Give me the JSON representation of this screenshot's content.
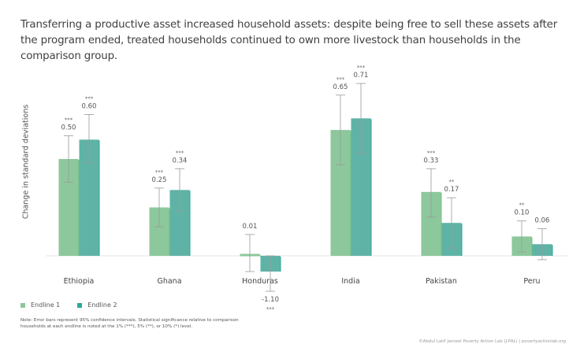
{
  "title": "Transferring a productive asset increased household assets: despite being free to sell these assets after the program ended, treated households continued to own more livestock than households in the comparison group.",
  "chart_data": {
    "type": "bar",
    "title": "Transferring a productive asset increased household assets: despite being free to sell these assets after the program ended, treated households continued to own more livestock than households in the comparison group.",
    "xlabel": "",
    "ylabel": "Change in standard deviations",
    "categories": [
      "Ethiopia",
      "Ghana",
      "Honduras",
      "India",
      "Pakistan",
      "Peru"
    ],
    "series": [
      {
        "name": "Endline 1",
        "color": "#8dc89c",
        "values": [
          0.5,
          0.25,
          0.01,
          0.65,
          0.33,
          0.1
        ],
        "labels": [
          "0.50",
          "0.25",
          "0.01",
          "0.65",
          "0.33",
          "0.10"
        ],
        "significance": [
          "***",
          "***",
          "",
          "***",
          "***",
          "**"
        ],
        "ci": [
          [
            0.38,
            0.62
          ],
          [
            0.15,
            0.35
          ],
          [
            -0.09,
            0.11
          ],
          [
            0.47,
            0.83
          ],
          [
            0.2,
            0.45
          ],
          [
            0.02,
            0.18
          ]
        ]
      },
      {
        "name": "Endline 2",
        "color": "#5fb3a6",
        "values": [
          0.6,
          0.34,
          -1.1,
          0.71,
          0.17,
          0.06
        ],
        "labels": [
          "0.60",
          "0.34",
          "-1.10",
          "0.71",
          "0.17",
          "0.06"
        ],
        "significance": [
          "***",
          "***",
          "***",
          "***",
          "**",
          ""
        ],
        "ci": [
          [
            0.48,
            0.73
          ],
          [
            0.23,
            0.45
          ],
          [
            -1.2,
            -1.0
          ],
          [
            0.53,
            0.89
          ],
          [
            0.04,
            0.3
          ],
          [
            -0.02,
            0.14
          ]
        ]
      }
    ],
    "error_bars": "95% confidence intervals",
    "grid": false,
    "legend": "bottom-left"
  },
  "legend": {
    "items": [
      {
        "label": "Endline 1",
        "color": "#8dc89c"
      },
      {
        "label": "Endline 2",
        "color": "#5fb3a6"
      }
    ]
  },
  "note": "Note: Error bars represent 95% confidence intervals. Statistical significance relative to comparison households at each endline is noted at the 1% (***), 5% (**), or 10% (*) level.",
  "credit": "©Abdul Latif Jameel Poverty Action Lab (J-PAL) | povertyactionlab.org"
}
